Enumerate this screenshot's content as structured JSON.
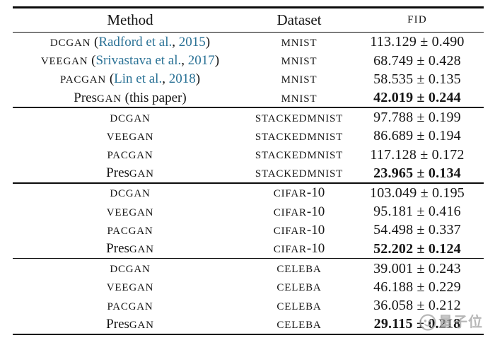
{
  "colors": {
    "link": "#2b7296",
    "text": "#151515",
    "watermark": "#a8a8a8"
  },
  "watermark": {
    "text": "量子位",
    "logo": "qbitai-logo"
  },
  "table": {
    "headers": [
      {
        "label": "Method"
      },
      {
        "label": "Dataset"
      },
      {
        "label": "FID"
      }
    ],
    "sections": [
      {
        "rows": [
          {
            "method": [
              {
                "text": "DCGAN",
                "style": "sc"
              },
              {
                "text": " (",
                "style": "plain"
              },
              {
                "text": "Radford et al.",
                "style": "link"
              },
              {
                "text": ", ",
                "style": "plain"
              },
              {
                "text": "2015",
                "style": "link"
              },
              {
                "text": ")",
                "style": "plain"
              }
            ],
            "dataset": [
              {
                "text": "MNIST",
                "style": "sc"
              }
            ],
            "fid": "113.129 ± 0.490",
            "bold": false
          },
          {
            "method": [
              {
                "text": "VEEGAN",
                "style": "sc"
              },
              {
                "text": " (",
                "style": "plain"
              },
              {
                "text": "Srivastava et al.",
                "style": "link"
              },
              {
                "text": ", ",
                "style": "plain"
              },
              {
                "text": "2017",
                "style": "link"
              },
              {
                "text": ")",
                "style": "plain"
              }
            ],
            "dataset": [
              {
                "text": "MNIST",
                "style": "sc"
              }
            ],
            "fid": "68.749 ± 0.428",
            "bold": false
          },
          {
            "method": [
              {
                "text": "PACGAN",
                "style": "sc"
              },
              {
                "text": " (",
                "style": "plain"
              },
              {
                "text": "Lin et al.",
                "style": "link"
              },
              {
                "text": ", ",
                "style": "plain"
              },
              {
                "text": "2018",
                "style": "link"
              },
              {
                "text": ")",
                "style": "plain"
              }
            ],
            "dataset": [
              {
                "text": "MNIST",
                "style": "sc"
              }
            ],
            "fid": "58.535 ± 0.135",
            "bold": false
          },
          {
            "method": [
              {
                "text": "Pres",
                "style": "plain"
              },
              {
                "text": "GAN",
                "style": "sc"
              },
              {
                "text": " (this paper)",
                "style": "plain"
              }
            ],
            "dataset": [
              {
                "text": "MNIST",
                "style": "sc"
              }
            ],
            "fid": "42.019 ± 0.244",
            "bold": true
          }
        ]
      },
      {
        "rows": [
          {
            "method": [
              {
                "text": "DCGAN",
                "style": "sc"
              }
            ],
            "dataset": [
              {
                "text": "STACKEDMNIST",
                "style": "sc"
              }
            ],
            "fid": "97.788 ± 0.199",
            "bold": false
          },
          {
            "method": [
              {
                "text": "VEEGAN",
                "style": "sc"
              }
            ],
            "dataset": [
              {
                "text": "STACKEDMNIST",
                "style": "sc"
              }
            ],
            "fid": "86.689 ± 0.194",
            "bold": false
          },
          {
            "method": [
              {
                "text": "PACGAN",
                "style": "sc"
              }
            ],
            "dataset": [
              {
                "text": "STACKEDMNIST",
                "style": "sc"
              }
            ],
            "fid": "117.128 ± 0.172",
            "bold": false
          },
          {
            "method": [
              {
                "text": "Pres",
                "style": "plain"
              },
              {
                "text": "GAN",
                "style": "sc"
              }
            ],
            "dataset": [
              {
                "text": "STACKEDMNIST",
                "style": "sc"
              }
            ],
            "fid": "23.965 ± 0.134",
            "bold": true
          }
        ]
      },
      {
        "rows": [
          {
            "method": [
              {
                "text": "DCGAN",
                "style": "sc"
              }
            ],
            "dataset": [
              {
                "text": "CIFAR",
                "style": "sc"
              },
              {
                "text": "-10",
                "style": "plain"
              }
            ],
            "fid": "103.049 ± 0.195",
            "bold": false
          },
          {
            "method": [
              {
                "text": "VEEGAN",
                "style": "sc"
              }
            ],
            "dataset": [
              {
                "text": "CIFAR",
                "style": "sc"
              },
              {
                "text": "-10",
                "style": "plain"
              }
            ],
            "fid": "95.181 ± 0.416",
            "bold": false
          },
          {
            "method": [
              {
                "text": "PACGAN",
                "style": "sc"
              }
            ],
            "dataset": [
              {
                "text": "CIFAR",
                "style": "sc"
              },
              {
                "text": "-10",
                "style": "plain"
              }
            ],
            "fid": "54.498 ± 0.337",
            "bold": false
          },
          {
            "method": [
              {
                "text": "Pres",
                "style": "plain"
              },
              {
                "text": "GAN",
                "style": "sc"
              }
            ],
            "dataset": [
              {
                "text": "CIFAR",
                "style": "sc"
              },
              {
                "text": "-10",
                "style": "plain"
              }
            ],
            "fid": "52.202 ± 0.124",
            "bold": true
          }
        ]
      },
      {
        "rows": [
          {
            "method": [
              {
                "text": "DCGAN",
                "style": "sc"
              }
            ],
            "dataset": [
              {
                "text": "CELEBA",
                "style": "sc"
              }
            ],
            "fid": "39.001 ± 0.243",
            "bold": false
          },
          {
            "method": [
              {
                "text": "VEEGAN",
                "style": "sc"
              }
            ],
            "dataset": [
              {
                "text": "CELEBA",
                "style": "sc"
              }
            ],
            "fid": "46.188 ± 0.229",
            "bold": false
          },
          {
            "method": [
              {
                "text": "PACGAN",
                "style": "sc"
              }
            ],
            "dataset": [
              {
                "text": "CELEBA",
                "style": "sc"
              }
            ],
            "fid": "36.058 ± 0.212",
            "bold": false
          },
          {
            "method": [
              {
                "text": "Pres",
                "style": "plain"
              },
              {
                "text": "GAN",
                "style": "sc"
              }
            ],
            "dataset": [
              {
                "text": "CELEBA",
                "style": "sc"
              }
            ],
            "fid": "29.115 ± 0.218",
            "bold": true
          }
        ]
      }
    ]
  }
}
